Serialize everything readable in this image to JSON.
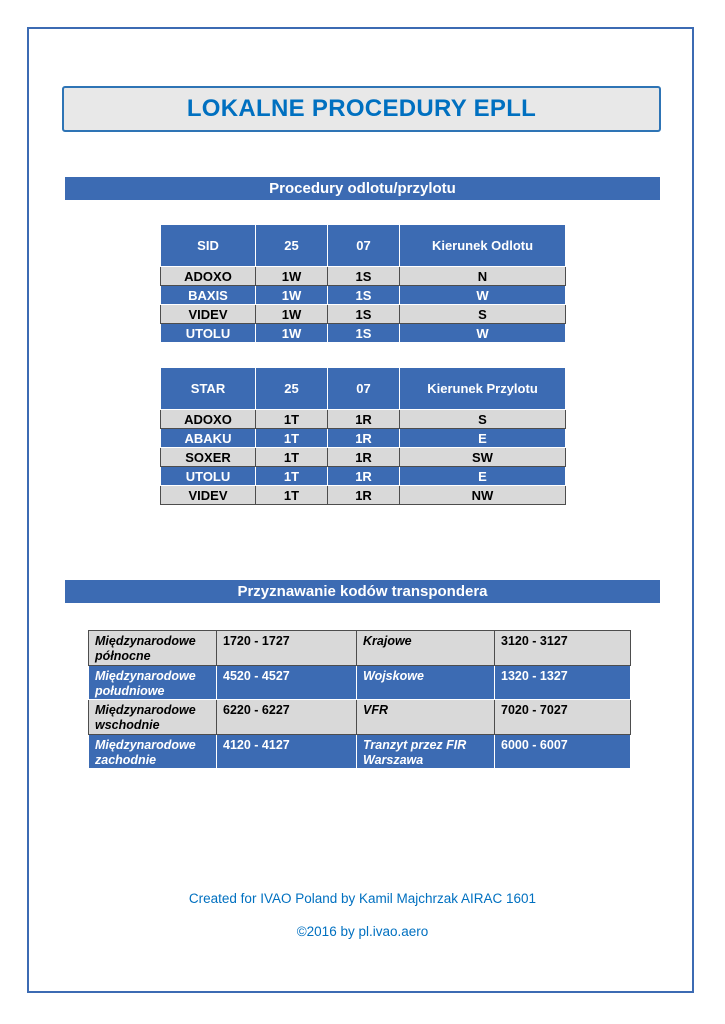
{
  "page": {
    "title": "LOKALNE PROCEDURY EPLL",
    "colors": {
      "accent_blue": "#3C6BB3",
      "bright_blue": "#0070C0",
      "row_gray": "#D9D9D9",
      "title_box_bg": "#E8E8E8",
      "title_box_border": "#2E74B5"
    }
  },
  "sections": {
    "procedures": {
      "heading": "Procedury odlotu/przylotu"
    },
    "transponder": {
      "heading": "Przyznawanie kodów transpondera"
    }
  },
  "sid_table": {
    "headers": [
      "SID",
      "25",
      "07",
      "Kierunek Odlotu"
    ],
    "rows": [
      [
        "ADOXO",
        "1W",
        "1S",
        "N"
      ],
      [
        "BAXIS",
        "1W",
        "1S",
        "W"
      ],
      [
        "VIDEV",
        "1W",
        "1S",
        "S"
      ],
      [
        "UTOLU",
        "1W",
        "1S",
        "W"
      ]
    ]
  },
  "star_table": {
    "headers": [
      "STAR",
      "25",
      "07",
      "Kierunek Przylotu"
    ],
    "rows": [
      [
        "ADOXO",
        "1T",
        "1R",
        "S"
      ],
      [
        "ABAKU",
        "1T",
        "1R",
        "E"
      ],
      [
        "SOXER",
        "1T",
        "1R",
        "SW"
      ],
      [
        "UTOLU",
        "1T",
        "1R",
        "E"
      ],
      [
        "VIDEV",
        "1T",
        "1R",
        "NW"
      ]
    ]
  },
  "transponder_table": {
    "rows": [
      [
        "Międzynarodowe północne",
        "1720 - 1727",
        "Krajowe",
        "3120 - 3127"
      ],
      [
        "Międzynarodowe południowe",
        "4520 - 4527",
        "Wojskowe",
        "1320 - 1327"
      ],
      [
        "Międzynarodowe wschodnie",
        "6220 - 6227",
        "VFR",
        "7020 - 7027"
      ],
      [
        "Międzynarodowe zachodnie",
        "4120 - 4127",
        "Tranzyt przez FIR Warszawa",
        "6000 - 6007"
      ]
    ]
  },
  "footer": {
    "line1": "Created for IVAO Poland by Kamil Majchrzak AIRAC 1601",
    "line2": "©2016 by pl.ivao.aero"
  }
}
